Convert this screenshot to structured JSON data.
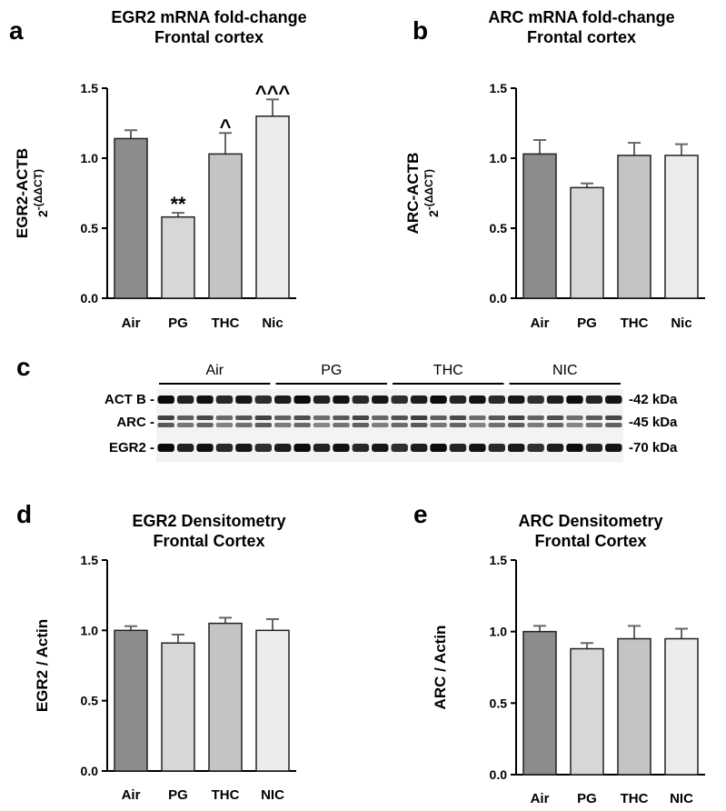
{
  "panels": {
    "a": "a",
    "b": "b",
    "c": "c",
    "d": "d",
    "e": "e"
  },
  "chart_data": [
    {
      "id": "a",
      "type": "bar",
      "title": [
        "EGR2 mRNA fold-change",
        "Frontal cortex"
      ],
      "ylabel": "EGR2-ACTB",
      "ylabel_sub": "2",
      "ylabel_sup": "-(ΔΔCT)",
      "categories": [
        "Air",
        "PG",
        "THC",
        "Nic"
      ],
      "values": [
        1.14,
        0.58,
        1.03,
        1.3
      ],
      "errors": [
        0.06,
        0.03,
        0.15,
        0.12
      ],
      "significance": [
        "",
        "**",
        "^",
        "^^^"
      ],
      "colors": [
        "#8c8c8c",
        "#d7d7d7",
        "#c4c4c4",
        "#ececec"
      ],
      "ylim": [
        0,
        1.5
      ],
      "yticks": [
        "0.0",
        "0.5",
        "1.0",
        "1.5"
      ]
    },
    {
      "id": "b",
      "type": "bar",
      "title": [
        "ARC mRNA fold-change",
        "Frontal cortex"
      ],
      "ylabel": "ARC-ACTB",
      "ylabel_sub": "2",
      "ylabel_sup": "-(ΔΔCT)",
      "categories": [
        "Air",
        "PG",
        "THC",
        "Nic"
      ],
      "values": [
        1.03,
        0.79,
        1.02,
        1.02
      ],
      "errors": [
        0.1,
        0.03,
        0.09,
        0.08
      ],
      "significance": [
        "",
        "",
        "",
        ""
      ],
      "colors": [
        "#8c8c8c",
        "#d7d7d7",
        "#c4c4c4",
        "#ececec"
      ],
      "ylim": [
        0,
        1.5
      ],
      "yticks": [
        "0.0",
        "0.5",
        "1.0",
        "1.5"
      ]
    },
    {
      "id": "d",
      "type": "bar",
      "title": [
        "EGR2 Densitometry",
        "Frontal Cortex"
      ],
      "ylabel": "EGR2 / Actin",
      "categories": [
        "Air",
        "PG",
        "THC",
        "NIC"
      ],
      "values": [
        1.0,
        0.91,
        1.05,
        1.0
      ],
      "errors": [
        0.03,
        0.06,
        0.04,
        0.08
      ],
      "significance": [
        "",
        "",
        "",
        ""
      ],
      "colors": [
        "#8c8c8c",
        "#d7d7d7",
        "#c4c4c4",
        "#ececec"
      ],
      "ylim": [
        0,
        1.5
      ],
      "yticks": [
        "0.0",
        "0.5",
        "1.0",
        "1.5"
      ]
    },
    {
      "id": "e",
      "type": "bar",
      "title": [
        "ARC Densitometry",
        "Frontal Cortex"
      ],
      "ylabel": "ARC / Actin",
      "categories": [
        "Air",
        "PG",
        "THC",
        "NIC"
      ],
      "values": [
        1.0,
        0.88,
        0.95,
        0.95
      ],
      "errors": [
        0.04,
        0.04,
        0.09,
        0.07
      ],
      "significance": [
        "",
        "",
        "",
        ""
      ],
      "colors": [
        "#8c8c8c",
        "#d7d7d7",
        "#c4c4c4",
        "#ececec"
      ],
      "ylim": [
        0,
        1.5
      ],
      "yticks": [
        "0.0",
        "0.5",
        "1.0",
        "1.5"
      ]
    }
  ],
  "western_blot": {
    "groups": [
      "Air",
      "PG",
      "THC",
      "NIC"
    ],
    "lanes_per_group": 6,
    "rows": [
      {
        "label": "ACT B -",
        "size": "-42 kDa"
      },
      {
        "label": "ARC -",
        "size": "-45 kDa"
      },
      {
        "label": "EGR2 -",
        "size": "-70 kDa"
      }
    ]
  }
}
